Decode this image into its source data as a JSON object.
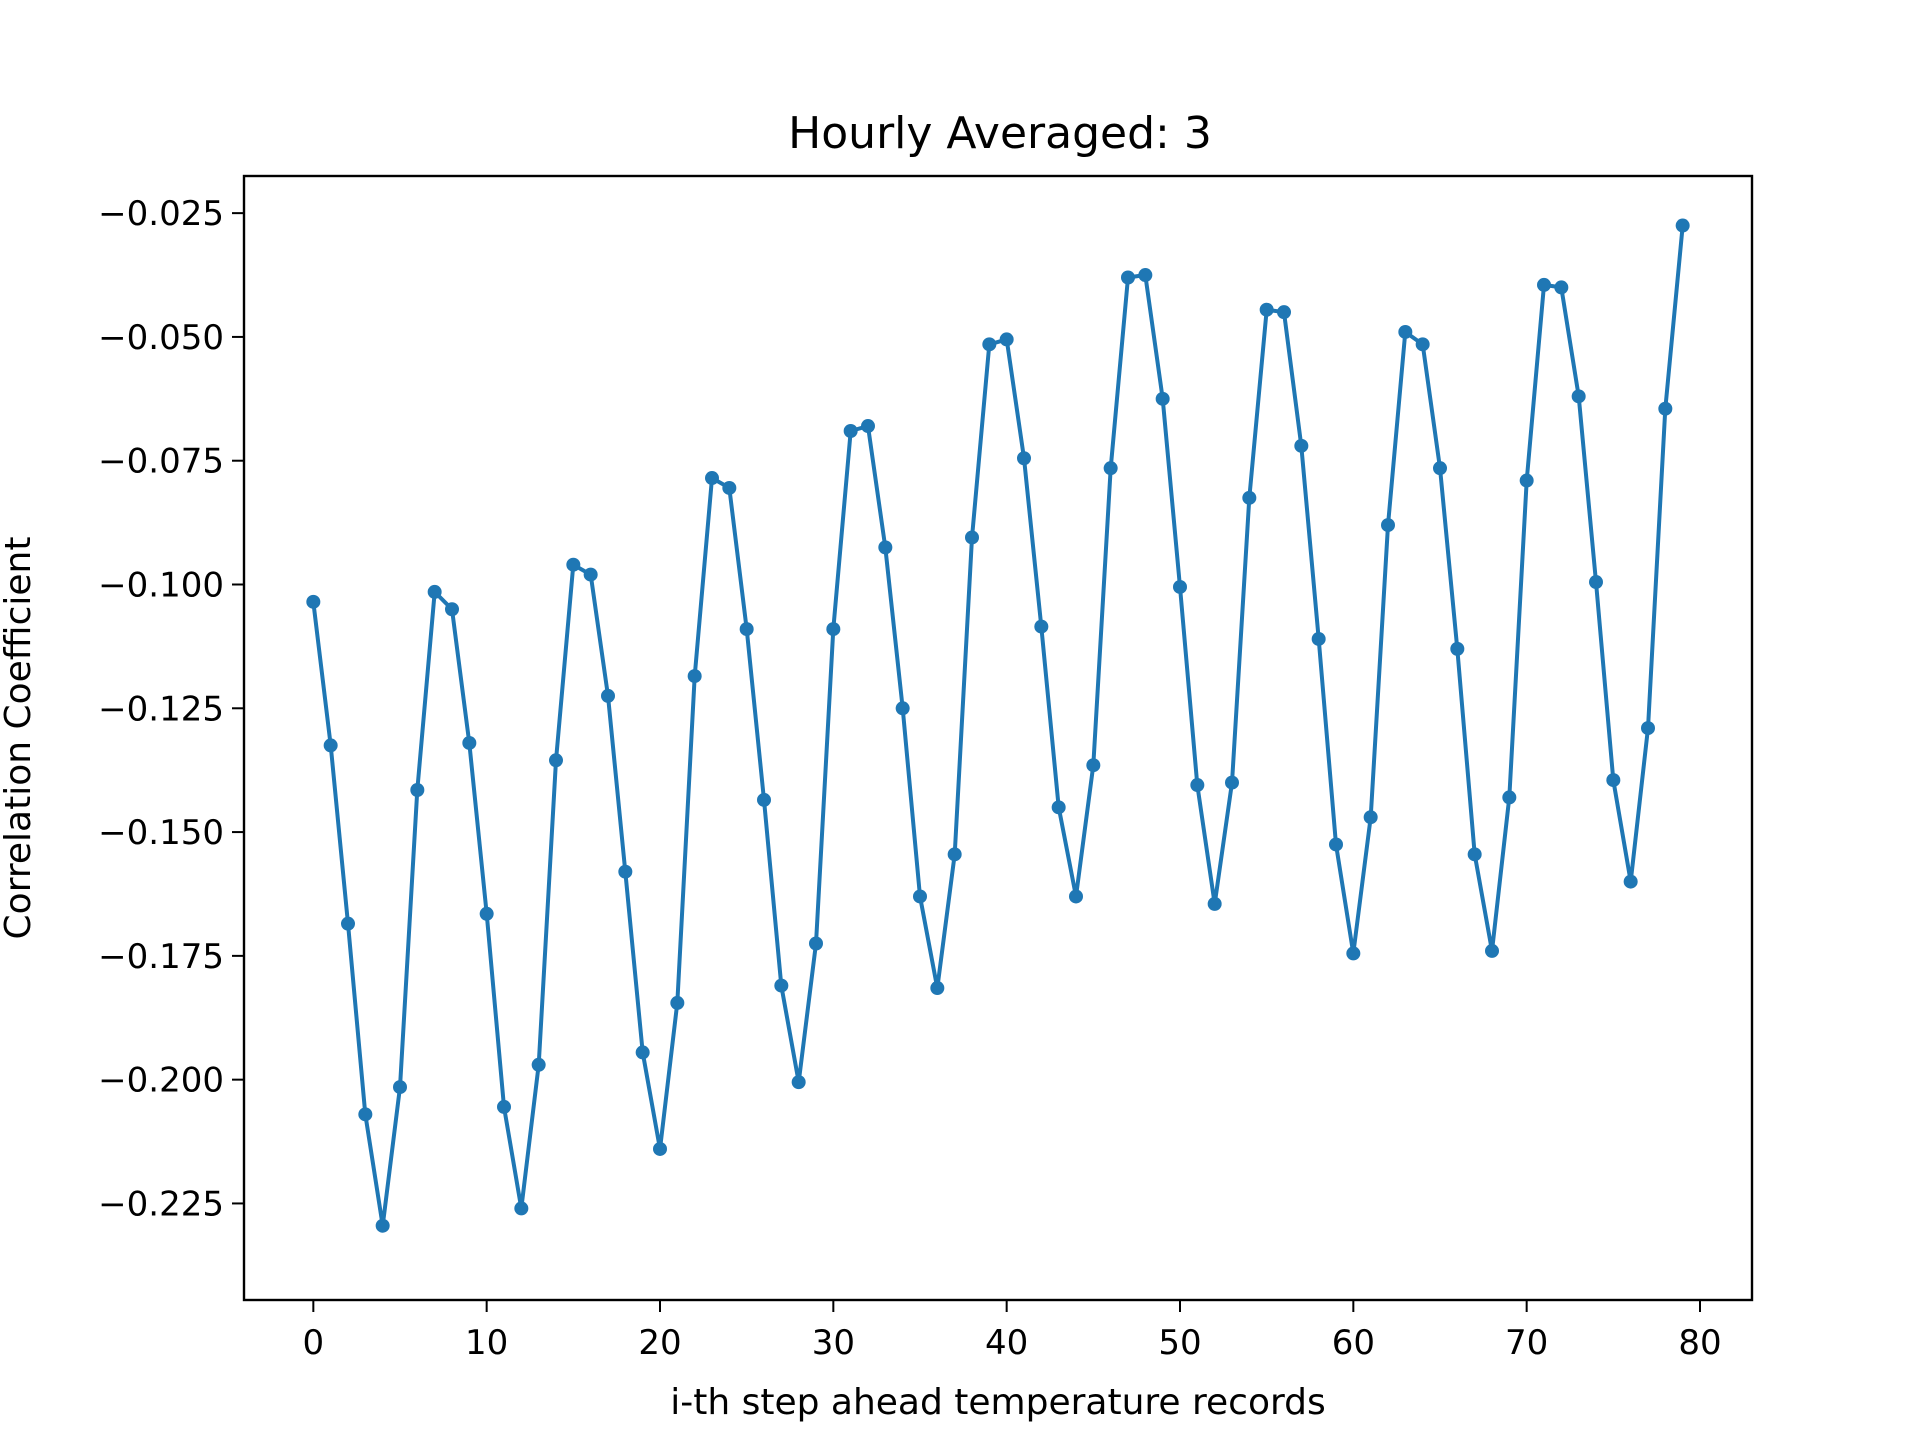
{
  "chart_data": {
    "type": "line",
    "title": "Hourly Averaged: 3",
    "xlabel": "i-th step ahead temperature records",
    "ylabel": "Correlation Coefficient",
    "xlim": [
      -4,
      83
    ],
    "ylim": [
      -0.2445,
      -0.0175
    ],
    "xticks": [
      0,
      10,
      20,
      30,
      40,
      50,
      60,
      70,
      80
    ],
    "xtick_labels": [
      "0",
      "10",
      "20",
      "30",
      "40",
      "50",
      "60",
      "70",
      "80"
    ],
    "yticks": [
      -0.025,
      -0.05,
      -0.075,
      -0.1,
      -0.125,
      -0.15,
      -0.175,
      -0.2,
      -0.225
    ],
    "ytick_labels": [
      "−0.025",
      "−0.050",
      "−0.075",
      "−0.100",
      "−0.125",
      "−0.150",
      "−0.175",
      "−0.200",
      "−0.225"
    ],
    "grid": false,
    "series": [
      {
        "color": "#1f77b4",
        "marker": "circle",
        "x": [
          0,
          1,
          2,
          3,
          4,
          5,
          6,
          7,
          8,
          9,
          10,
          11,
          12,
          13,
          14,
          15,
          16,
          17,
          18,
          19,
          20,
          21,
          22,
          23,
          24,
          25,
          26,
          27,
          28,
          29,
          30,
          31,
          32,
          33,
          34,
          35,
          36,
          37,
          38,
          39,
          40,
          41,
          42,
          43,
          44,
          45,
          46,
          47,
          48,
          49,
          50,
          51,
          52,
          53,
          54,
          55,
          56,
          57,
          58,
          59,
          60,
          61,
          62,
          63,
          64,
          65,
          66,
          67,
          68,
          69,
          70,
          71,
          72,
          73,
          74,
          75,
          76,
          77,
          78,
          79
        ],
        "y": [
          -0.1035,
          -0.1325,
          -0.1685,
          -0.207,
          -0.2295,
          -0.2015,
          -0.1415,
          -0.1015,
          -0.105,
          -0.132,
          -0.1665,
          -0.2055,
          -0.226,
          -0.197,
          -0.1355,
          -0.096,
          -0.098,
          -0.1225,
          -0.158,
          -0.1945,
          -0.214,
          -0.1845,
          -0.1185,
          -0.0785,
          -0.0805,
          -0.109,
          -0.1435,
          -0.181,
          -0.2005,
          -0.1725,
          -0.109,
          -0.069,
          -0.068,
          -0.0925,
          -0.125,
          -0.163,
          -0.1815,
          -0.1545,
          -0.0905,
          -0.0515,
          -0.0505,
          -0.0745,
          -0.1085,
          -0.145,
          -0.163,
          -0.1365,
          -0.0765,
          -0.038,
          -0.0375,
          -0.0625,
          -0.1005,
          -0.1405,
          -0.1645,
          -0.14,
          -0.0825,
          -0.0445,
          -0.045,
          -0.072,
          -0.111,
          -0.1525,
          -0.1745,
          -0.147,
          -0.088,
          -0.049,
          -0.0515,
          -0.0765,
          -0.113,
          -0.1545,
          -0.174,
          -0.143,
          -0.079,
          -0.0395,
          -0.04,
          -0.062,
          -0.0995,
          -0.1395,
          -0.16,
          -0.129,
          -0.0645,
          -0.0275
        ]
      }
    ]
  }
}
